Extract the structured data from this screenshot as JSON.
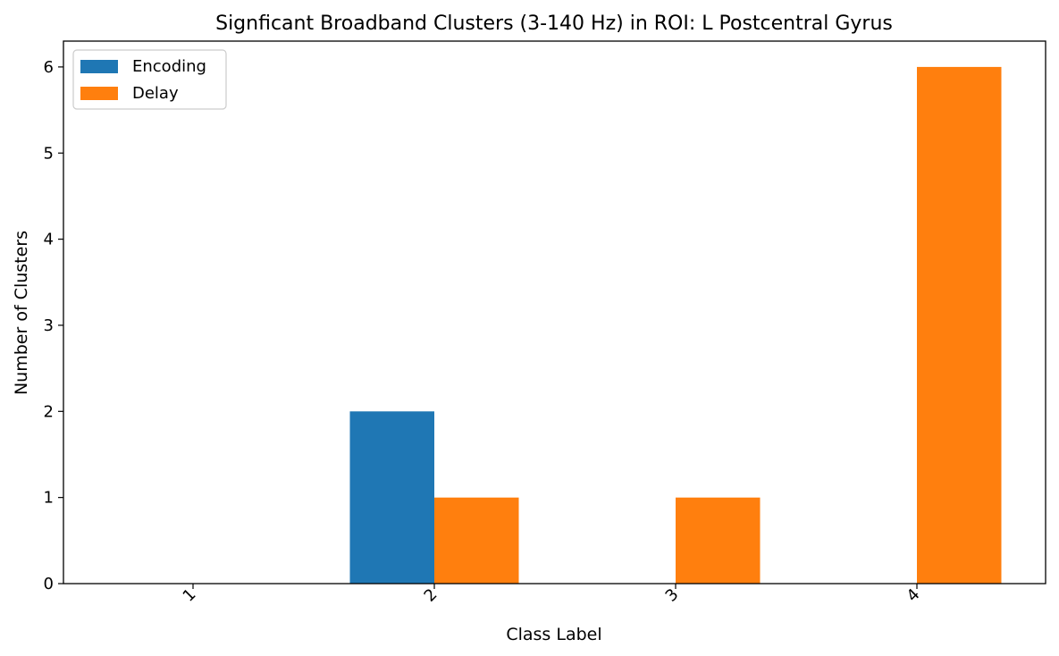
{
  "chart_data": {
    "type": "bar",
    "title": "Signficant Broadband Clusters (3-140 Hz) in ROI: L Postcentral Gyrus",
    "xlabel": "Class Label",
    "ylabel": "Number of Clusters",
    "categories": [
      "1",
      "2",
      "3",
      "4"
    ],
    "series": [
      {
        "name": "Encoding",
        "values": [
          0,
          2,
          0,
          0
        ],
        "color": "#1f77b4"
      },
      {
        "name": "Delay",
        "values": [
          0,
          1,
          1,
          6
        ],
        "color": "#ff7f0e"
      }
    ],
    "ylim": [
      0,
      6.3
    ],
    "yticks": [
      0,
      1,
      2,
      3,
      4,
      5,
      6
    ],
    "grid": false,
    "legend_position": "top-left"
  }
}
